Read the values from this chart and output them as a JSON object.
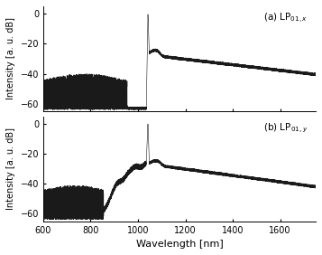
{
  "title_a": "(a) LP$_{01,x}$",
  "title_b": "(b) LP$_{01,y}$",
  "xlabel": "Wavelength [nm]",
  "ylabel": "Intensity [a. u. dB]",
  "xlim": [
    600,
    1750
  ],
  "ylim": [
    -65,
    5
  ],
  "yticks": [
    0,
    -20,
    -40,
    -60
  ],
  "xticks": [
    600,
    800,
    1000,
    1200,
    1400,
    1600
  ],
  "pump_wl": 1040,
  "line_color": "#1a1a1a",
  "bg_color": "#ffffff"
}
